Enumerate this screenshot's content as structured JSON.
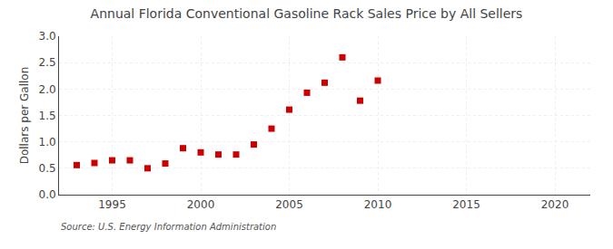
{
  "chart_data": {
    "type": "scatter",
    "title": "Annual Florida Conventional Gasoline Rack Sales Price by All Sellers",
    "ylabel": "Dollars per Gallon",
    "annotations": [
      "Source: U.S. Energy Information Administration"
    ],
    "x": [
      1993,
      1994,
      1995,
      1996,
      1997,
      1998,
      1999,
      2000,
      2001,
      2002,
      2003,
      2004,
      2005,
      2006,
      2007,
      2008,
      2009,
      2010
    ],
    "values": [
      0.56,
      0.6,
      0.65,
      0.65,
      0.5,
      0.59,
      0.88,
      0.8,
      0.76,
      0.76,
      0.95,
      1.25,
      1.61,
      1.93,
      2.12,
      2.6,
      1.78,
      2.16
    ],
    "color": "#cc0000",
    "marker": "square",
    "xlim": [
      1992,
      2022
    ],
    "ylim": [
      0.0,
      3.0
    ],
    "xticks": [
      1995,
      2000,
      2005,
      2010,
      2015,
      2020
    ],
    "yticks": [
      {
        "value": 0.0,
        "label": "0.0"
      },
      0.5,
      {
        "value": 1.0,
        "label": "1.0"
      },
      1.5,
      {
        "value": 2.0,
        "label": "2.0"
      },
      2.5,
      {
        "value": 3.0,
        "label": "3.0"
      }
    ],
    "grid": true
  }
}
